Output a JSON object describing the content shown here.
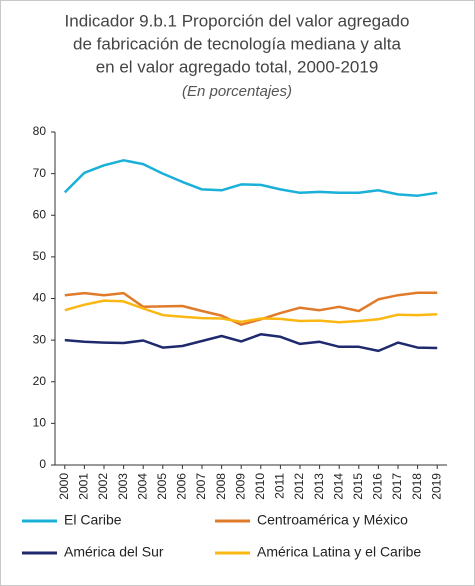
{
  "chart_data": {
    "type": "line",
    "title": [
      "Indicador 9.b.1 Proporción del valor agregado",
      "de fabricación de tecnología mediana y alta",
      "en el valor agregado total, 2000-2019"
    ],
    "subtitle": "(En porcentajes)",
    "categories": [
      "2000",
      "2001",
      "2002",
      "2003",
      "2004",
      "2005",
      "2006",
      "2007",
      "2008",
      "2009",
      "2010",
      "2011",
      "2012",
      "2013",
      "2014",
      "2015",
      "2016",
      "2017",
      "2018",
      "2019"
    ],
    "series": [
      {
        "name": "El Caribe",
        "color": "#1ab0d8",
        "values": [
          65.5,
          70.2,
          72,
          73.2,
          72.3,
          70,
          68,
          66.2,
          66,
          67.4,
          67.3,
          66.2,
          65.4,
          65.6,
          65.4,
          65.4,
          66,
          65,
          64.7,
          65.4
        ]
      },
      {
        "name": "Centroamérica y México",
        "color": "#e07b2a",
        "values": [
          40.8,
          41.3,
          40.8,
          41.3,
          38,
          38.1,
          38.2,
          37,
          35.9,
          33.7,
          35,
          36.5,
          37.8,
          37.2,
          38,
          37,
          39.8,
          40.8,
          41.4,
          41.4
        ]
      },
      {
        "name": "América del Sur",
        "color": "#1f2a6e",
        "values": [
          30,
          29.6,
          29.4,
          29.3,
          29.9,
          28.2,
          28.6,
          29.8,
          31,
          29.7,
          31.4,
          30.8,
          29.1,
          29.6,
          28.4,
          28.4,
          27.4,
          29.4,
          28.2,
          28.1
        ]
      },
      {
        "name": "América Latina y el Caribe",
        "color": "#fbb814",
        "values": [
          37.2,
          38.5,
          39.5,
          39.3,
          37.6,
          36,
          35.6,
          35.3,
          35.2,
          34.4,
          35.2,
          35.1,
          34.6,
          34.7,
          34.3,
          34.6,
          35,
          36.1,
          36,
          36.2
        ]
      }
    ],
    "ylim": [
      0,
      80
    ],
    "yticks": [
      0,
      10,
      20,
      30,
      40,
      50,
      60,
      70,
      80
    ],
    "grid": false
  }
}
